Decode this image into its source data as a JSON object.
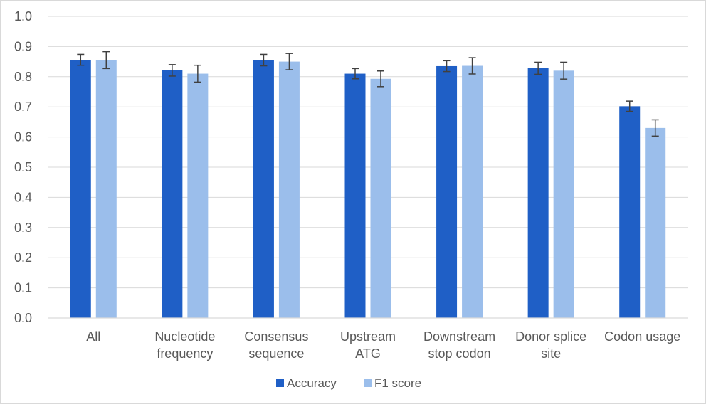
{
  "chart_data": {
    "type": "bar",
    "categories": [
      [
        "All"
      ],
      [
        "Nucleotide",
        "frequency"
      ],
      [
        "Consensus",
        "sequence"
      ],
      [
        "Upstream",
        "ATG"
      ],
      [
        "Downstream",
        "stop codon"
      ],
      [
        "Donor splice",
        "site"
      ],
      [
        "Codon usage"
      ]
    ],
    "series": [
      {
        "name": "Accuracy",
        "color": "#1F5FC6",
        "values": [
          0.856,
          0.821,
          0.855,
          0.81,
          0.835,
          0.828,
          0.702
        ],
        "errors": [
          0.018,
          0.019,
          0.019,
          0.017,
          0.018,
          0.02,
          0.017
        ]
      },
      {
        "name": "F1 score",
        "color": "#9BBEEB",
        "values": [
          0.855,
          0.81,
          0.85,
          0.793,
          0.836,
          0.82,
          0.63
        ],
        "errors": [
          0.028,
          0.028,
          0.027,
          0.026,
          0.027,
          0.028,
          0.027
        ]
      }
    ],
    "ylim": [
      0,
      1.0
    ],
    "yticks": [
      "0.0",
      "0.1",
      "0.2",
      "0.3",
      "0.4",
      "0.5",
      "0.6",
      "0.7",
      "0.8",
      "0.9",
      "1.0"
    ],
    "grid": true,
    "legend": "bottom",
    "title": "",
    "xlabel": "",
    "ylabel": ""
  }
}
